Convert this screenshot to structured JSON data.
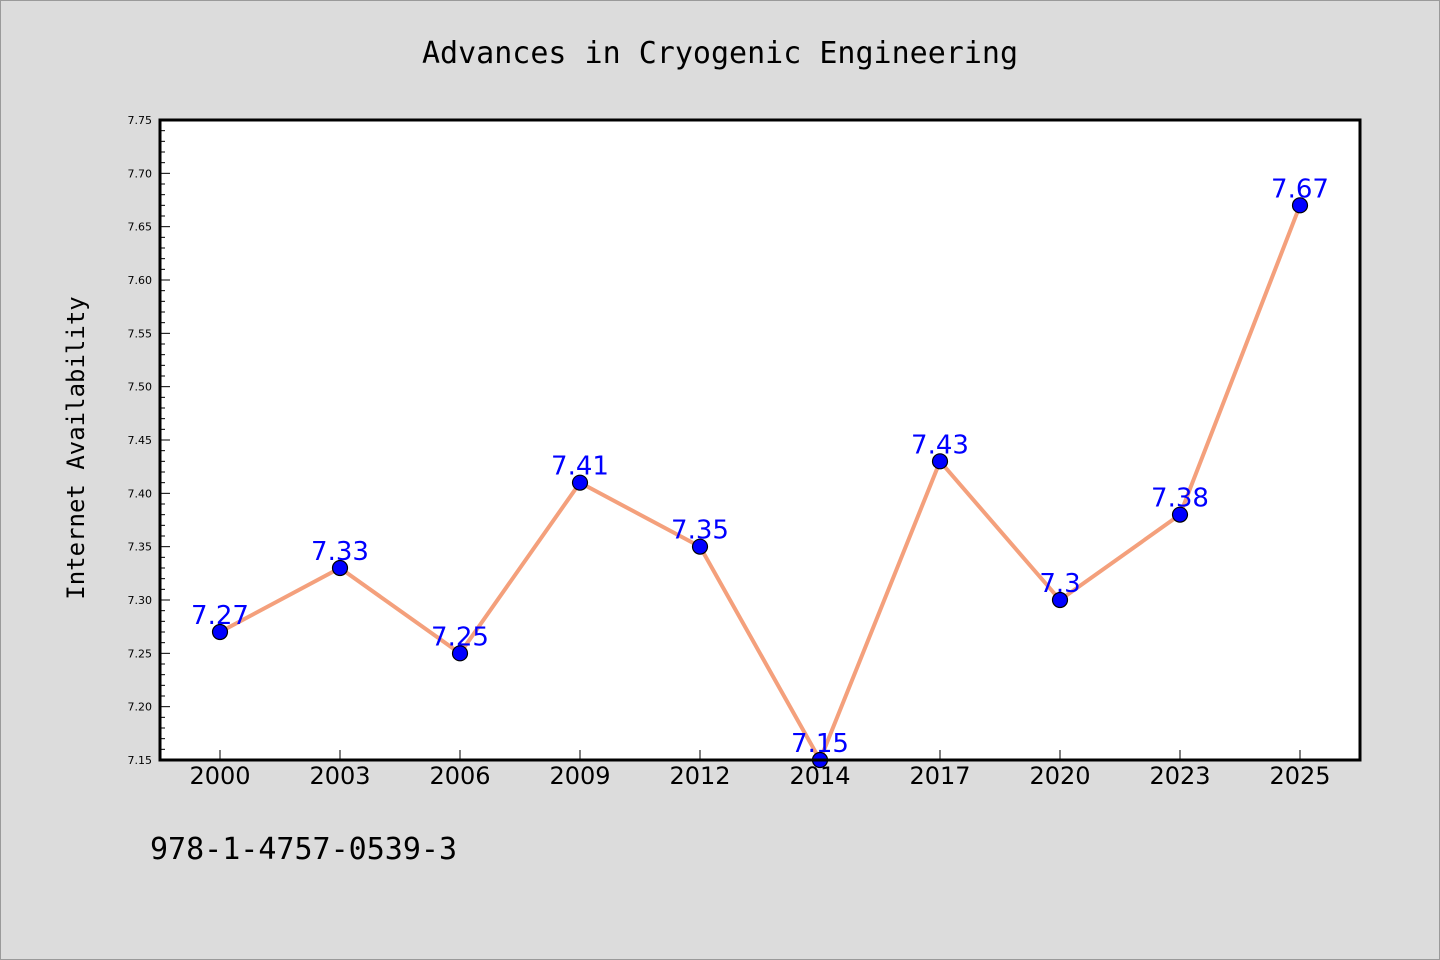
{
  "chart_data": {
    "type": "line",
    "title": "Advances in Cryogenic Engineering",
    "xlabel": "",
    "ylabel": "Internet Availability",
    "categories": [
      "2000",
      "2003",
      "2006",
      "2009",
      "2012",
      "2014",
      "2017",
      "2020",
      "2023",
      "2025"
    ],
    "series": [
      {
        "values": [
          7.27,
          7.33,
          7.25,
          7.41,
          7.35,
          7.15,
          7.43,
          7.3,
          7.38,
          7.67
        ],
        "data_labels": [
          "7.27",
          "7.33",
          "7.25",
          "7.41",
          "7.35",
          "7.15",
          "7.43",
          "7.3",
          "7.38",
          "7.67"
        ]
      }
    ],
    "ylim": [
      7.15,
      7.75
    ],
    "yticks": [
      "7.15",
      "7.20",
      "7.25",
      "7.30",
      "7.35",
      "7.40",
      "7.45",
      "7.50",
      "7.55",
      "7.60",
      "7.65",
      "7.70",
      "7.75"
    ],
    "grid": false,
    "legend": "none",
    "colors": {
      "line": "#f4a07c",
      "marker_fill": "#0000ff",
      "marker_edge": "#000000",
      "data_label": "#0000ff",
      "background": "#dcdcdc",
      "plot_background": "#ffffff"
    }
  },
  "footer": {
    "isbn": "978-1-4757-0539-3"
  }
}
